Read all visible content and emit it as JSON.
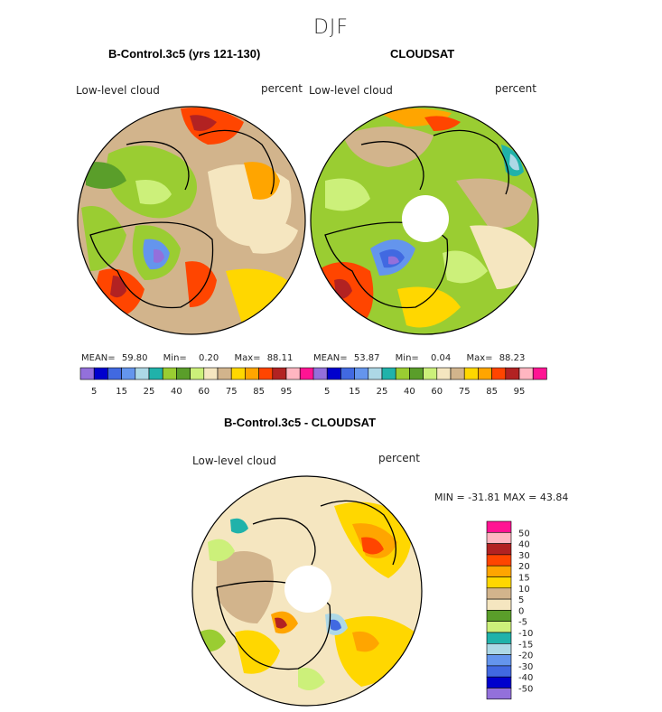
{
  "figure": {
    "title": "DJF"
  },
  "panels": [
    {
      "title": "B-Control.3c5 (yrs 121-130)",
      "variable": "Low-level cloud",
      "units": "percent",
      "stats": {
        "mean_label": "MEAN=",
        "mean": "59.80",
        "min_label": "Min=",
        "min": "0.20",
        "max_label": "Max=",
        "max": "88.11"
      }
    },
    {
      "title": "CLOUDSAT",
      "variable": "Low-level cloud",
      "units": "percent",
      "stats": {
        "mean_label": "MEAN=",
        "mean": "53.87",
        "min_label": "Min=",
        "min": "0.04",
        "max_label": "Max=",
        "max": "88.23"
      }
    },
    {
      "title": "B-Control.3c5 - CLOUDSAT",
      "variable": "Low-level cloud",
      "units": "percent",
      "minmax_text": "MIN = -31.81  MAX =  43.84"
    }
  ],
  "chart_data": [
    {
      "type": "heatmap",
      "projection": "north-polar-stereographic",
      "title": "B-Control.3c5 (yrs 121-130)",
      "variable": "Low-level cloud",
      "units": "percent",
      "mean": 59.8,
      "min": 0.2,
      "max": 88.11,
      "colorbar": {
        "levels": [
          5,
          10,
          15,
          20,
          25,
          30,
          40,
          50,
          60,
          70,
          75,
          80,
          85,
          90,
          95
        ],
        "tick_labels": [
          "5",
          "15",
          "25",
          "40",
          "60",
          "75",
          "85",
          "95"
        ],
        "colors": [
          "#9370db",
          "#0000cd",
          "#4169e1",
          "#6495ed",
          "#add8e6",
          "#20b2aa",
          "#9acd32",
          "#5a9e2a",
          "#ccf07a",
          "#f5e6c0",
          "#d2b48c",
          "#ffd700",
          "#ffa500",
          "#ff4500",
          "#b22222",
          "#ffb6c1",
          "#ff1493"
        ]
      }
    },
    {
      "type": "heatmap",
      "projection": "north-polar-stereographic",
      "title": "CLOUDSAT",
      "variable": "Low-level cloud",
      "units": "percent",
      "mean": 53.87,
      "min": 0.04,
      "max": 88.23,
      "missing_region": "polar cap (no data)",
      "colorbar": {
        "levels": [
          5,
          10,
          15,
          20,
          25,
          30,
          40,
          50,
          60,
          70,
          75,
          80,
          85,
          90,
          95
        ],
        "tick_labels": [
          "5",
          "15",
          "25",
          "40",
          "60",
          "75",
          "85",
          "95"
        ],
        "colors": [
          "#9370db",
          "#0000cd",
          "#4169e1",
          "#6495ed",
          "#add8e6",
          "#20b2aa",
          "#9acd32",
          "#5a9e2a",
          "#ccf07a",
          "#f5e6c0",
          "#d2b48c",
          "#ffd700",
          "#ffa500",
          "#ff4500",
          "#b22222",
          "#ffb6c1",
          "#ff1493"
        ]
      }
    },
    {
      "type": "heatmap",
      "projection": "north-polar-stereographic",
      "title": "B-Control.3c5 - CLOUDSAT",
      "variable": "Low-level cloud",
      "units": "percent",
      "min": -31.81,
      "max": 43.84,
      "missing_region": "polar cap (no data)",
      "colorbar": {
        "orientation": "vertical",
        "tick_labels": [
          "50",
          "40",
          "30",
          "20",
          "15",
          "10",
          "5",
          "0",
          "-5",
          "-10",
          "-15",
          "-20",
          "-30",
          "-40",
          "-50"
        ],
        "colors": [
          "#ff1493",
          "#ffb6c1",
          "#b22222",
          "#ff4500",
          "#ffa500",
          "#ffd700",
          "#d2b48c",
          "#f5e6c0",
          "#5a9e2a",
          "#ccf07a",
          "#20b2aa",
          "#add8e6",
          "#6495ed",
          "#4169e1",
          "#0000cd",
          "#9370db"
        ]
      }
    }
  ]
}
